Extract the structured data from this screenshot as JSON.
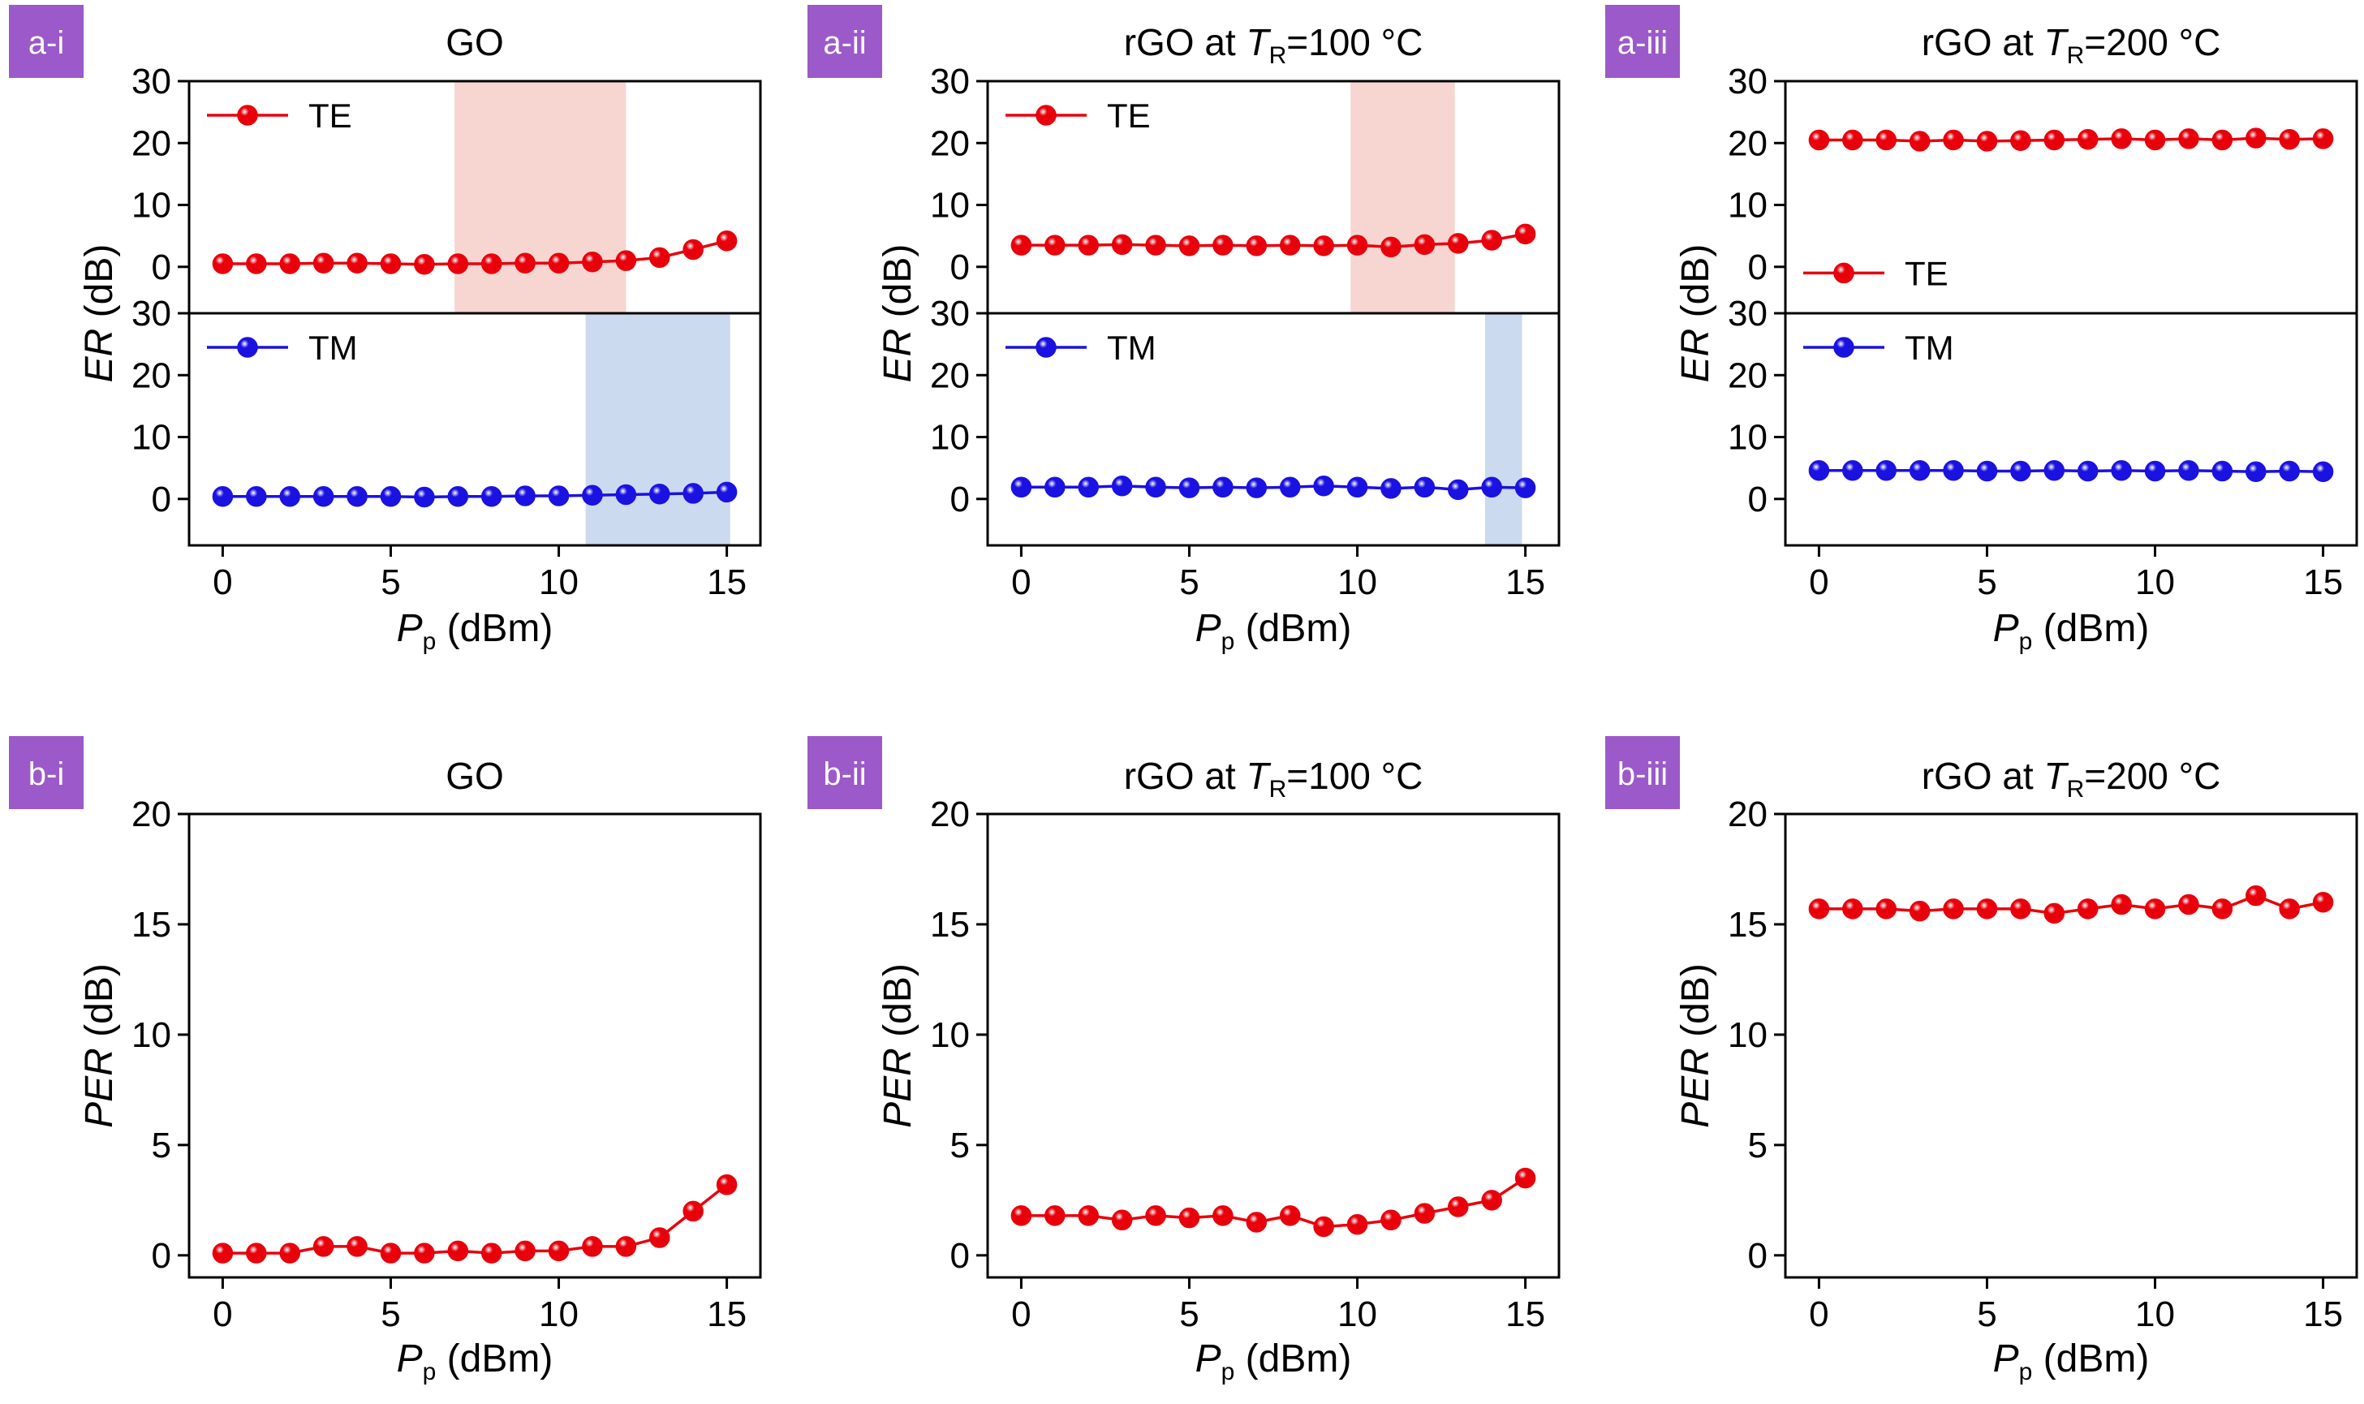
{
  "colors": {
    "te": "#e8000b",
    "tm": "#1a12e0",
    "badge": "#9b59c9",
    "te_band": "#f7d5d1",
    "tm_band": "#cbdaee"
  },
  "x_axis": {
    "label_main": "P",
    "label_sub": "p",
    "label_unit": " (dBm)",
    "ticks": [
      "0",
      "5",
      "10",
      "15"
    ]
  },
  "er_axis": {
    "label_main": "ER",
    "label_unit": " (dB)",
    "ticks": [
      "0",
      "10",
      "20",
      "30"
    ]
  },
  "per_axis": {
    "label_main": "PER",
    "label_unit": " (dB)",
    "ticks": [
      "0",
      "5",
      "10",
      "15",
      "20"
    ]
  },
  "chart_data": [
    {
      "type": "line",
      "badge": "a-i",
      "title": "GO",
      "xlim": [
        -1,
        16
      ],
      "ylim": [
        -7.5,
        30
      ],
      "panels": [
        {
          "name": "TE",
          "band": [
            6.9,
            12
          ],
          "x": [
            0,
            1,
            2,
            3,
            4,
            5,
            6,
            7,
            8,
            9,
            10,
            11,
            12,
            13,
            14,
            15
          ],
          "values": [
            0.5,
            0.5,
            0.5,
            0.6,
            0.6,
            0.5,
            0.4,
            0.5,
            0.5,
            0.6,
            0.6,
            0.8,
            1,
            1.5,
            2.8,
            4.2
          ]
        },
        {
          "name": "TM",
          "band": [
            10.8,
            15.1
          ],
          "x": [
            0,
            1,
            2,
            3,
            4,
            5,
            6,
            7,
            8,
            9,
            10,
            11,
            12,
            13,
            14,
            15
          ],
          "values": [
            0.4,
            0.4,
            0.4,
            0.4,
            0.4,
            0.4,
            0.3,
            0.4,
            0.4,
            0.5,
            0.5,
            0.6,
            0.7,
            0.8,
            0.9,
            1.1
          ]
        }
      ]
    },
    {
      "type": "line",
      "badge": "a-ii",
      "title_pre": "rGO at ",
      "title_var": "T",
      "title_sub": "R",
      "title_post": "=100 °C",
      "xlim": [
        -1,
        16
      ],
      "ylim": [
        -7.5,
        30
      ],
      "panels": [
        {
          "name": "TE",
          "band": [
            9.8,
            12.9
          ],
          "x": [
            0,
            1,
            2,
            3,
            4,
            5,
            6,
            7,
            8,
            9,
            10,
            11,
            12,
            13,
            14,
            15
          ],
          "values": [
            3.5,
            3.5,
            3.5,
            3.6,
            3.5,
            3.4,
            3.5,
            3.4,
            3.5,
            3.4,
            3.5,
            3.2,
            3.6,
            3.8,
            4.3,
            5.3
          ]
        },
        {
          "name": "TM",
          "band": [
            13.8,
            14.9
          ],
          "x": [
            0,
            1,
            2,
            3,
            4,
            5,
            6,
            7,
            8,
            9,
            10,
            11,
            12,
            13,
            14,
            15
          ],
          "values": [
            1.9,
            1.9,
            1.9,
            2.1,
            1.9,
            1.8,
            1.9,
            1.8,
            1.9,
            2.1,
            1.9,
            1.7,
            1.9,
            1.5,
            1.9,
            1.8
          ]
        }
      ]
    },
    {
      "type": "line",
      "badge": "a-iii",
      "title_pre": "rGO at ",
      "title_var": "T",
      "title_sub": "R",
      "title_post": "=200 °C",
      "xlim": [
        -1,
        16
      ],
      "ylim": [
        -7.5,
        30
      ],
      "panels": [
        {
          "name": "TE",
          "legend_low": true,
          "x": [
            0,
            1,
            2,
            3,
            4,
            5,
            6,
            7,
            8,
            9,
            10,
            11,
            12,
            13,
            14,
            15
          ],
          "values": [
            20.5,
            20.5,
            20.5,
            20.3,
            20.5,
            20.3,
            20.4,
            20.5,
            20.6,
            20.7,
            20.5,
            20.7,
            20.5,
            20.8,
            20.6,
            20.7
          ]
        },
        {
          "name": "TM",
          "x": [
            0,
            1,
            2,
            3,
            4,
            5,
            6,
            7,
            8,
            9,
            10,
            11,
            12,
            13,
            14,
            15
          ],
          "values": [
            4.6,
            4.6,
            4.6,
            4.6,
            4.6,
            4.5,
            4.5,
            4.6,
            4.5,
            4.6,
            4.5,
            4.6,
            4.5,
            4.4,
            4.5,
            4.4
          ]
        }
      ]
    },
    {
      "type": "line",
      "badge": "b-i",
      "title": "GO",
      "xlim": [
        -1,
        16
      ],
      "ylim": [
        -1,
        20
      ],
      "x": [
        0,
        1,
        2,
        3,
        4,
        5,
        6,
        7,
        8,
        9,
        10,
        11,
        12,
        13,
        14,
        15
      ],
      "values": [
        0.1,
        0.1,
        0.1,
        0.4,
        0.4,
        0.1,
        0.1,
        0.2,
        0.1,
        0.2,
        0.2,
        0.4,
        0.4,
        0.8,
        2,
        3.2
      ]
    },
    {
      "type": "line",
      "badge": "b-ii",
      "title_pre": "rGO at ",
      "title_var": "T",
      "title_sub": "R",
      "title_post": "=100 °C",
      "xlim": [
        -1,
        16
      ],
      "ylim": [
        -1,
        20
      ],
      "x": [
        0,
        1,
        2,
        3,
        4,
        5,
        6,
        7,
        8,
        9,
        10,
        11,
        12,
        13,
        14,
        15
      ],
      "values": [
        1.8,
        1.8,
        1.8,
        1.6,
        1.8,
        1.7,
        1.8,
        1.5,
        1.8,
        1.3,
        1.4,
        1.6,
        1.9,
        2.2,
        2.5,
        3.5
      ]
    },
    {
      "type": "line",
      "badge": "b-iii",
      "title_pre": "rGO at ",
      "title_var": "T",
      "title_sub": "R",
      "title_post": "=200 °C",
      "xlim": [
        -1,
        16
      ],
      "ylim": [
        -1,
        20
      ],
      "x": [
        0,
        1,
        2,
        3,
        4,
        5,
        6,
        7,
        8,
        9,
        10,
        11,
        12,
        13,
        14,
        15
      ],
      "values": [
        15.7,
        15.7,
        15.7,
        15.6,
        15.7,
        15.7,
        15.7,
        15.5,
        15.7,
        15.9,
        15.7,
        15.9,
        15.7,
        16.3,
        15.7,
        16
      ]
    }
  ]
}
